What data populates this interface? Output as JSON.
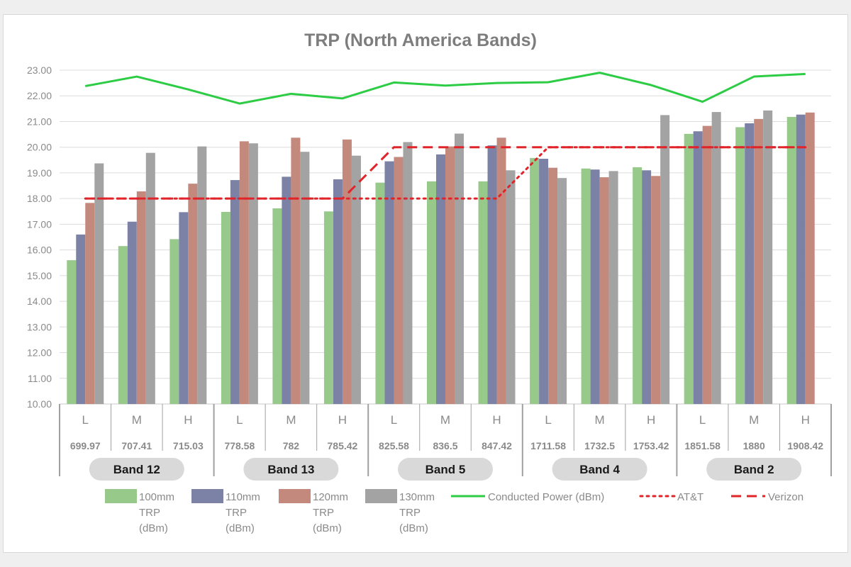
{
  "chart_data": {
    "type": "bar",
    "title": "TRP (North America Bands)",
    "ylim": [
      10,
      23
    ],
    "yticks": [
      "10.00",
      "11.00",
      "12.00",
      "13.00",
      "14.00",
      "15.00",
      "16.00",
      "17.00",
      "18.00",
      "19.00",
      "20.00",
      "21.00",
      "22.00",
      "23.00"
    ],
    "grid": true,
    "legend_position": "bottom",
    "categories": [
      "L",
      "M",
      "H",
      "L",
      "M",
      "H",
      "L",
      "M",
      "H",
      "L",
      "M",
      "H",
      "L",
      "M",
      "H"
    ],
    "frequencies": [
      "699.97",
      "707.41",
      "715.03",
      "778.58",
      "782",
      "785.42",
      "825.58",
      "836.5",
      "847.42",
      "1711.58",
      "1732.5",
      "1753.42",
      "1851.58",
      "1880",
      "1908.42"
    ],
    "groups": [
      {
        "name": "Band 12",
        "start": 0,
        "count": 3
      },
      {
        "name": "Band 13",
        "start": 3,
        "count": 3
      },
      {
        "name": "Band 5",
        "start": 6,
        "count": 3
      },
      {
        "name": "Band 4",
        "start": 9,
        "count": 3
      },
      {
        "name": "Band 2",
        "start": 12,
        "count": 3
      }
    ],
    "series": [
      {
        "name": "100mm TRP (dBm)",
        "legend_lines": [
          "100mm",
          "TRP",
          "(dBm)"
        ],
        "kind": "bar",
        "color": "#97c98b",
        "values": [
          15.6,
          16.15,
          16.42,
          17.48,
          17.62,
          17.5,
          18.62,
          18.67,
          18.67,
          19.58,
          19.17,
          19.22,
          20.52,
          20.78,
          21.18
        ]
      },
      {
        "name": "110mm TRP (dBm)",
        "legend_lines": [
          "110mm",
          "TRP",
          "(dBm)"
        ],
        "kind": "bar",
        "color": "#7c82a6",
        "values": [
          16.6,
          17.1,
          17.47,
          18.72,
          18.85,
          18.75,
          19.45,
          19.72,
          20.07,
          19.55,
          19.13,
          19.1,
          20.62,
          20.93,
          21.27
        ]
      },
      {
        "name": "120mm TRP (dBm)",
        "legend_lines": [
          "120mm",
          "TRP",
          "(dBm)"
        ],
        "kind": "bar",
        "color": "#c4897d",
        "values": [
          17.83,
          18.28,
          18.58,
          20.23,
          20.37,
          20.3,
          19.62,
          20.03,
          20.37,
          19.2,
          18.83,
          18.88,
          20.83,
          21.1,
          21.35
        ]
      },
      {
        "name": "130mm TRP (dBm)",
        "legend_lines": [
          "130mm",
          "TRP",
          "(dBm)"
        ],
        "kind": "bar",
        "color": "#a3a3a3",
        "values": [
          19.37,
          19.78,
          20.03,
          20.15,
          19.82,
          19.67,
          20.2,
          20.53,
          19.1,
          18.8,
          19.07,
          21.25,
          21.37,
          21.43,
          null
        ]
      },
      {
        "name": "Conducted Power (dBm)",
        "legend_lines": [
          "Conducted Power (dBm)"
        ],
        "kind": "line",
        "style": "solid",
        "color": "#2dcc45",
        "values": [
          22.38,
          22.75,
          22.25,
          21.7,
          22.08,
          21.9,
          22.52,
          22.4,
          22.5,
          22.53,
          22.9,
          22.42,
          21.77,
          22.75,
          22.85
        ]
      },
      {
        "name": "AT&T",
        "legend_lines": [
          "AT&T"
        ],
        "kind": "line",
        "style": "dotted",
        "color": "#e0242a",
        "values": [
          18,
          18,
          18,
          18,
          18,
          18,
          18,
          18,
          18,
          20,
          20,
          20,
          20,
          20,
          20
        ]
      },
      {
        "name": "Verizon",
        "legend_lines": [
          "Verizon"
        ],
        "kind": "line",
        "style": "dashed",
        "color": "#e0242a",
        "values": [
          18,
          18,
          18,
          18,
          18,
          18,
          20,
          20,
          20,
          20,
          20,
          20,
          20,
          20,
          20
        ]
      }
    ]
  }
}
